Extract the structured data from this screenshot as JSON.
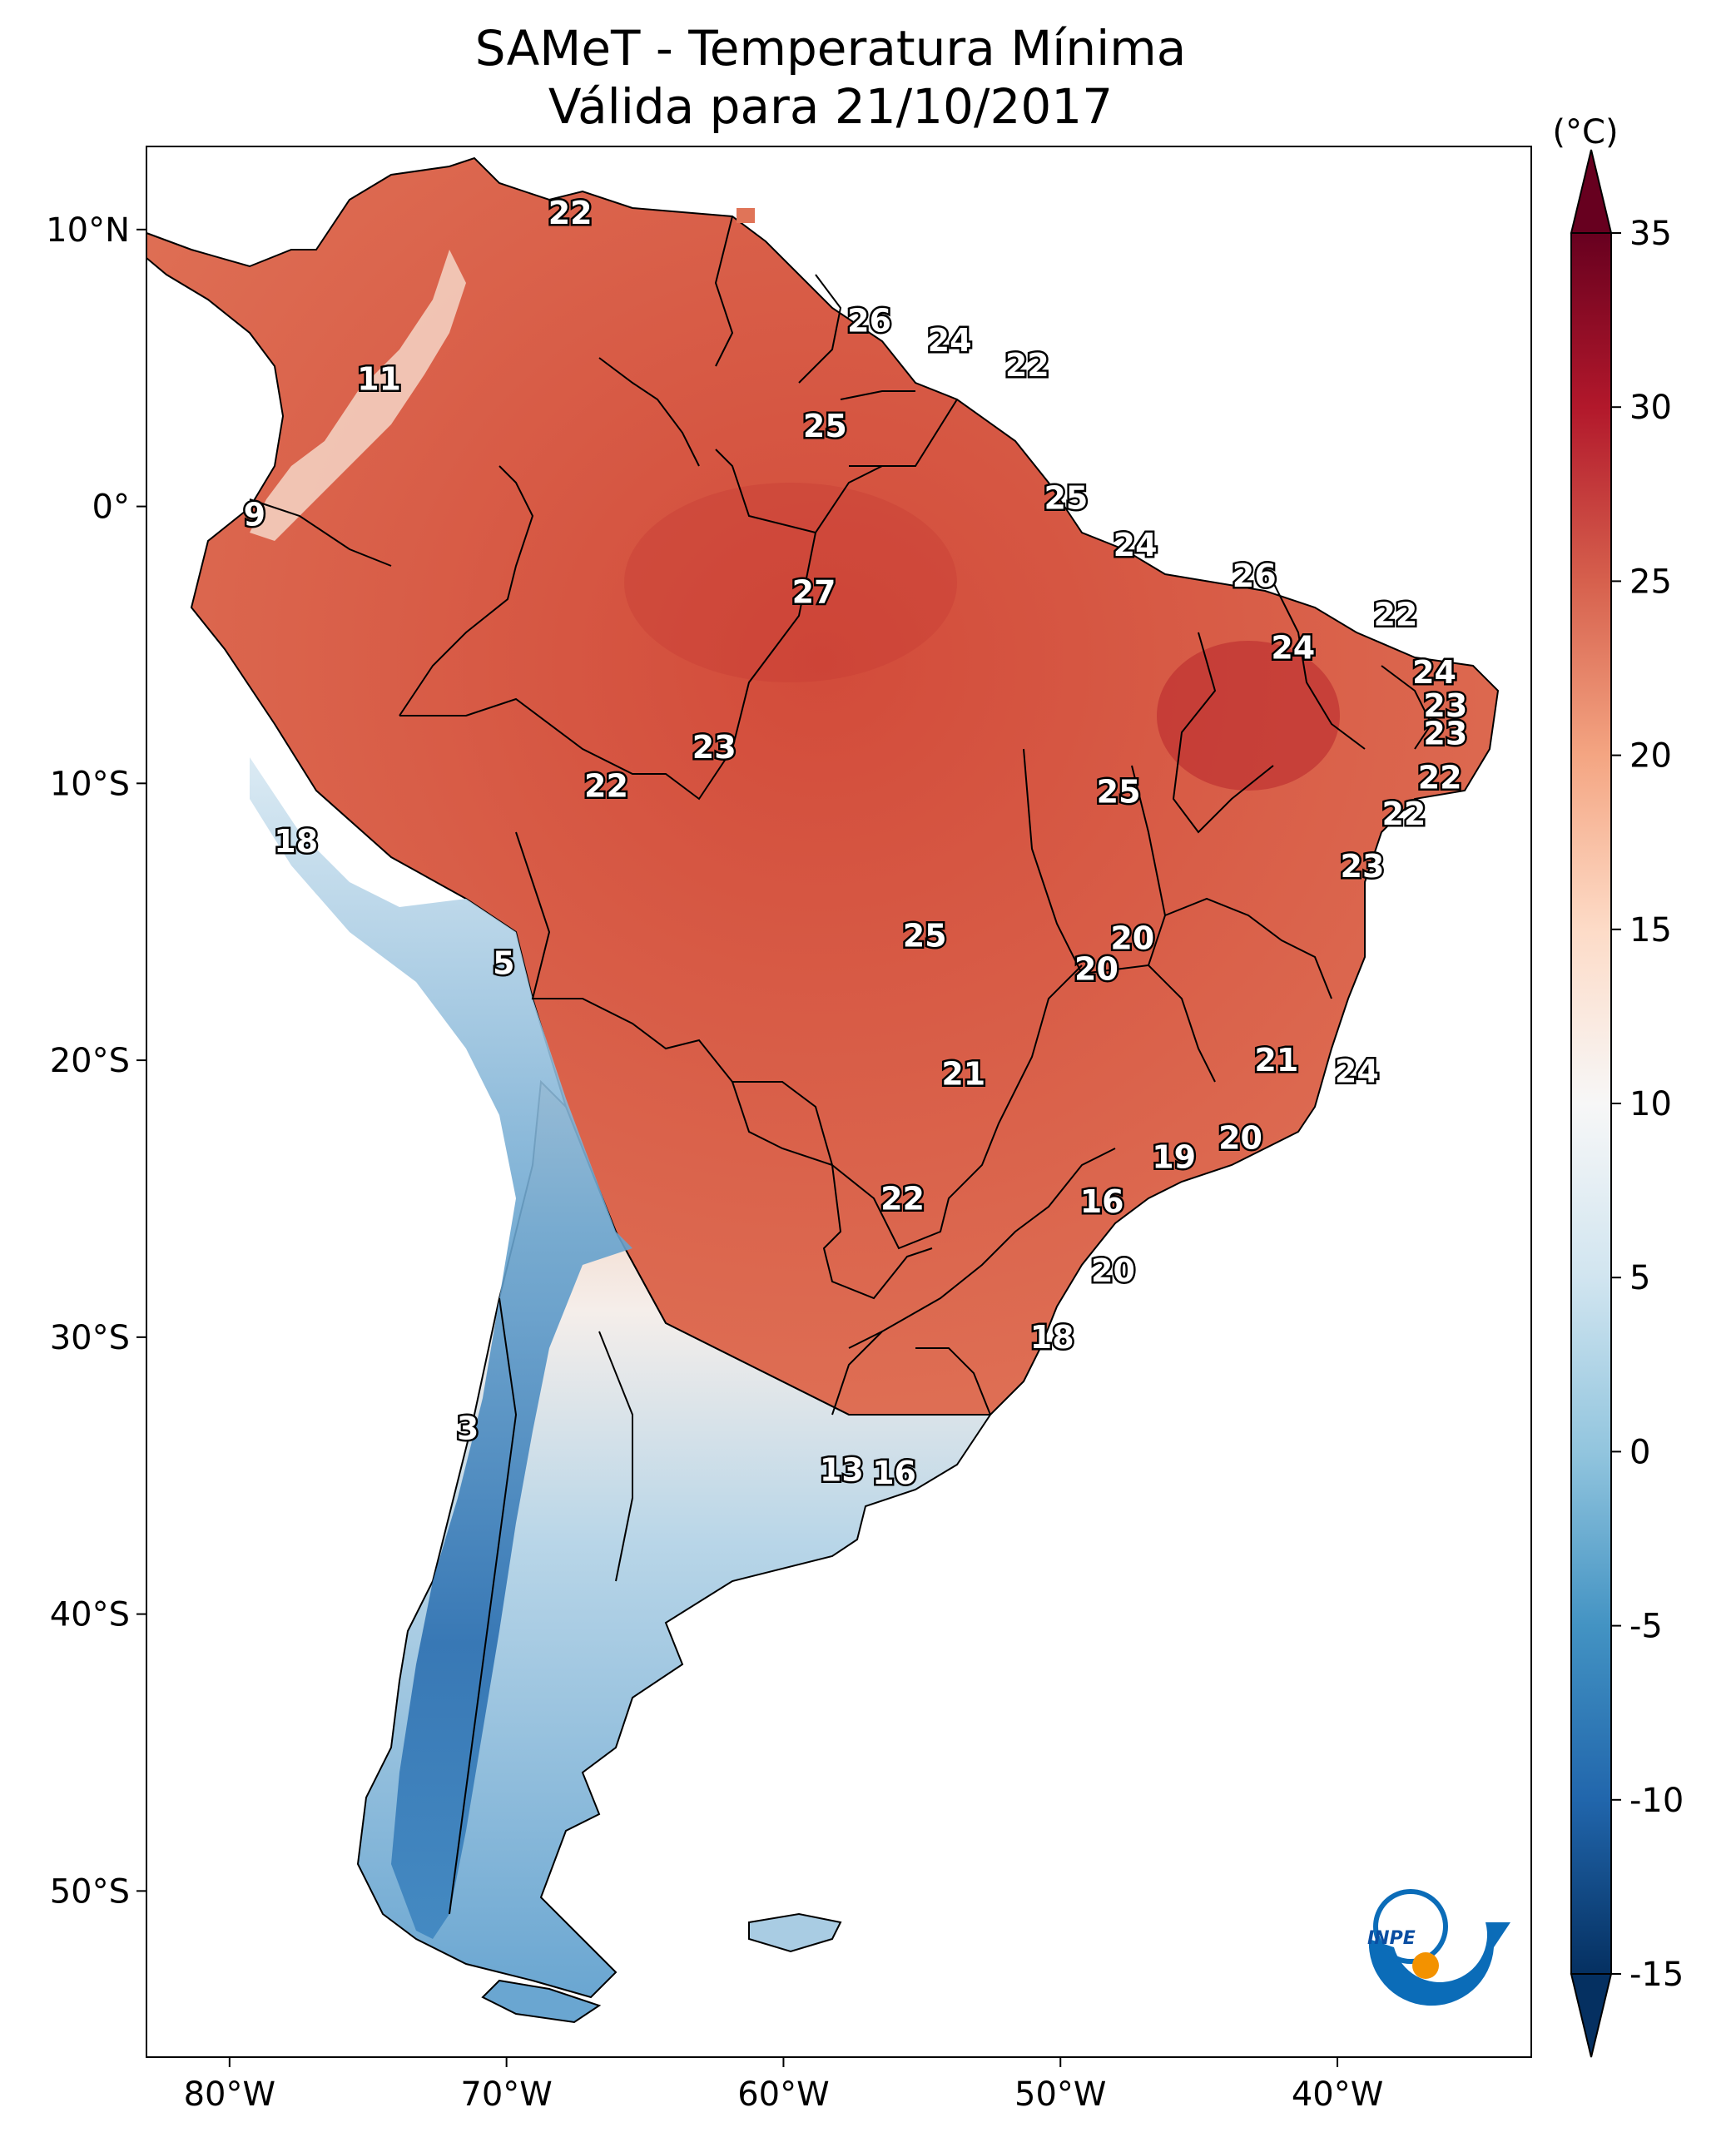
{
  "title": {
    "line1": "SAMeT - Temperatura Mínima",
    "line2": "Válida para 21/10/2017"
  },
  "map": {
    "lon_range": [
      -83,
      -33
    ],
    "lat_range": [
      -56,
      13
    ],
    "lon_ticks": [
      {
        "lon": -80,
        "label": "80°W"
      },
      {
        "lon": -70,
        "label": "70°W"
      },
      {
        "lon": -60,
        "label": "60°W"
      },
      {
        "lon": -50,
        "label": "50°W"
      },
      {
        "lon": -40,
        "label": "40°W"
      }
    ],
    "lat_ticks": [
      {
        "lat": 10,
        "label": "10°N"
      },
      {
        "lat": 0,
        "label": "0°"
      },
      {
        "lat": -10,
        "label": "10°S"
      },
      {
        "lat": -20,
        "label": "20°S"
      },
      {
        "lat": -30,
        "label": "30°S"
      },
      {
        "lat": -40,
        "label": "40°S"
      },
      {
        "lat": -50,
        "label": "50°S"
      }
    ],
    "value_labels": [
      {
        "lon": -67.7,
        "lat": 10.6,
        "value": "22"
      },
      {
        "lon": -56.9,
        "lat": 6.7,
        "value": "26"
      },
      {
        "lon": -54.0,
        "lat": 6.0,
        "value": "24"
      },
      {
        "lon": -51.2,
        "lat": 5.1,
        "value": "22"
      },
      {
        "lon": -74.6,
        "lat": 4.6,
        "value": "11"
      },
      {
        "lon": -58.5,
        "lat": 2.9,
        "value": "25"
      },
      {
        "lon": -79.1,
        "lat": -0.3,
        "value": "9"
      },
      {
        "lon": -49.8,
        "lat": 0.3,
        "value": "25"
      },
      {
        "lon": -47.3,
        "lat": -1.4,
        "value": "24"
      },
      {
        "lon": -43.0,
        "lat": -2.5,
        "value": "26"
      },
      {
        "lon": -58.9,
        "lat": -3.1,
        "value": "27"
      },
      {
        "lon": -37.9,
        "lat": -3.9,
        "value": "22"
      },
      {
        "lon": -41.6,
        "lat": -5.1,
        "value": "24"
      },
      {
        "lon": -36.5,
        "lat": -6.0,
        "value": "24"
      },
      {
        "lon": -36.1,
        "lat": -7.2,
        "value": "23"
      },
      {
        "lon": -36.1,
        "lat": -8.2,
        "value": "23"
      },
      {
        "lon": -62.5,
        "lat": -8.7,
        "value": "23"
      },
      {
        "lon": -66.4,
        "lat": -10.1,
        "value": "22"
      },
      {
        "lon": -47.9,
        "lat": -10.3,
        "value": "25"
      },
      {
        "lon": -36.3,
        "lat": -9.8,
        "value": "22"
      },
      {
        "lon": -37.6,
        "lat": -11.1,
        "value": "22"
      },
      {
        "lon": -77.6,
        "lat": -12.1,
        "value": "18"
      },
      {
        "lon": -39.1,
        "lat": -13.0,
        "value": "23"
      },
      {
        "lon": -54.9,
        "lat": -15.5,
        "value": "25"
      },
      {
        "lon": -47.4,
        "lat": -15.6,
        "value": "20"
      },
      {
        "lon": -48.7,
        "lat": -16.7,
        "value": "20"
      },
      {
        "lon": -70.1,
        "lat": -16.5,
        "value": "5"
      },
      {
        "lon": -53.5,
        "lat": -20.5,
        "value": "21"
      },
      {
        "lon": -42.2,
        "lat": -20.0,
        "value": "21"
      },
      {
        "lon": -39.3,
        "lat": -20.4,
        "value": "24"
      },
      {
        "lon": -43.5,
        "lat": -22.8,
        "value": "20"
      },
      {
        "lon": -45.9,
        "lat": -23.5,
        "value": "19"
      },
      {
        "lon": -55.7,
        "lat": -25.0,
        "value": "22"
      },
      {
        "lon": -48.5,
        "lat": -25.1,
        "value": "16"
      },
      {
        "lon": -48.1,
        "lat": -27.6,
        "value": "20"
      },
      {
        "lon": -50.3,
        "lat": -30.0,
        "value": "18"
      },
      {
        "lon": -71.4,
        "lat": -33.3,
        "value": "3"
      },
      {
        "lon": -57.9,
        "lat": -34.8,
        "value": "13"
      },
      {
        "lon": -56.0,
        "lat": -34.9,
        "value": "16"
      }
    ]
  },
  "colorbar": {
    "unit": "(°C)",
    "vmin": -15,
    "vmax": 35,
    "ticks": [
      {
        "value": 35,
        "label": "35"
      },
      {
        "value": 30,
        "label": "30"
      },
      {
        "value": 25,
        "label": "25"
      },
      {
        "value": 20,
        "label": "20"
      },
      {
        "value": 15,
        "label": "15"
      },
      {
        "value": 10,
        "label": "10"
      },
      {
        "value": 5,
        "label": "5"
      },
      {
        "value": 0,
        "label": "0"
      },
      {
        "value": -5,
        "label": "-5"
      },
      {
        "value": -10,
        "label": "-10"
      },
      {
        "value": -15,
        "label": "-15"
      }
    ],
    "colors": [
      "#053061",
      "#2166ac",
      "#4393c3",
      "#92c5de",
      "#d1e5f0",
      "#f7f7f7",
      "#fddbc7",
      "#f4a582",
      "#d6604d",
      "#b2182b",
      "#67001f"
    ]
  },
  "logo": {
    "text": "INPE",
    "colors": [
      "#0b6cb8",
      "#f39200"
    ]
  }
}
